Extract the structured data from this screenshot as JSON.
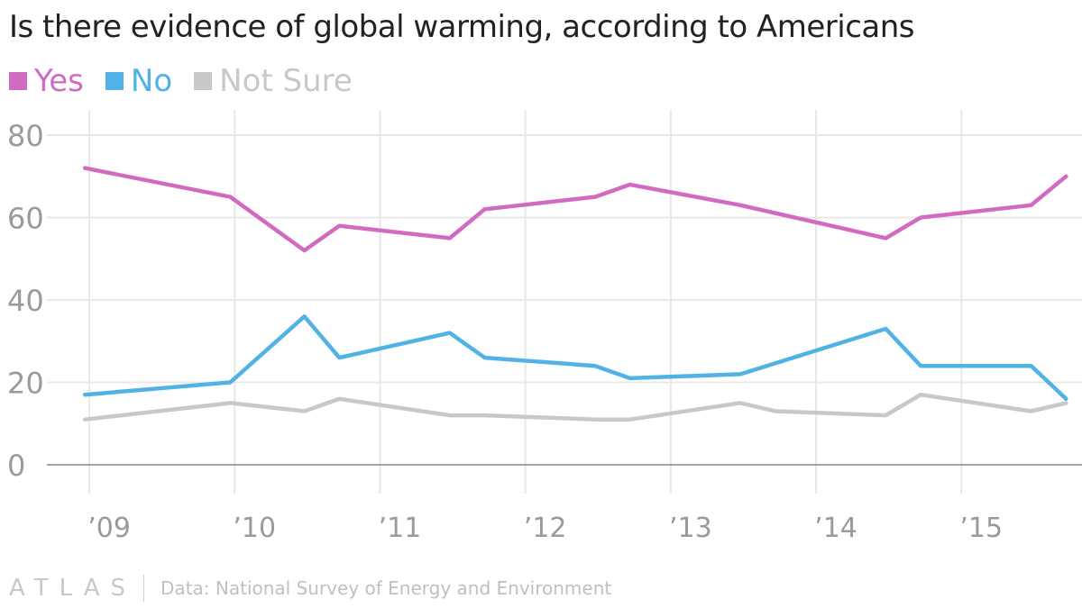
{
  "chart_data": {
    "type": "line",
    "title": "Is there evidence of global warming, according to Americans",
    "xlabel": "",
    "ylabel": "",
    "ylim": [
      0,
      80
    ],
    "yticks": [
      0,
      20,
      40,
      60,
      80
    ],
    "xlim": [
      2008.77,
      2015.83
    ],
    "xticks": [
      2009,
      2010,
      2011,
      2012,
      2013,
      2014,
      2015
    ],
    "xtick_labels": [
      "’09",
      "’10",
      "’11",
      "’12",
      "’13",
      "’14",
      "’15"
    ],
    "legend_position": "top-left",
    "series": [
      {
        "name": "Yes",
        "color": "#d16bc2",
        "points": [
          [
            2008.97,
            72
          ],
          [
            2009.97,
            65
          ],
          [
            2010.48,
            52
          ],
          [
            2010.72,
            58
          ],
          [
            2011.48,
            55
          ],
          [
            2011.72,
            62
          ],
          [
            2012.48,
            65
          ],
          [
            2012.72,
            68
          ],
          [
            2013.48,
            63
          ],
          [
            2014.48,
            55
          ],
          [
            2014.72,
            60
          ],
          [
            2015.48,
            63
          ],
          [
            2015.72,
            70
          ]
        ]
      },
      {
        "name": "No",
        "color": "#51b2e5",
        "points": [
          [
            2008.97,
            17
          ],
          [
            2009.97,
            20
          ],
          [
            2010.48,
            36
          ],
          [
            2010.72,
            26
          ],
          [
            2011.48,
            32
          ],
          [
            2011.72,
            26
          ],
          [
            2012.48,
            24
          ],
          [
            2012.72,
            21
          ],
          [
            2013.48,
            22
          ],
          [
            2014.48,
            33
          ],
          [
            2014.72,
            24
          ],
          [
            2015.48,
            24
          ],
          [
            2015.72,
            16
          ]
        ]
      },
      {
        "name": "Not Sure",
        "color": "#c8c8c8",
        "points": [
          [
            2008.97,
            11
          ],
          [
            2009.97,
            15
          ],
          [
            2010.48,
            13
          ],
          [
            2010.72,
            16
          ],
          [
            2011.48,
            12
          ],
          [
            2011.72,
            12
          ],
          [
            2012.48,
            11
          ],
          [
            2012.72,
            11
          ],
          [
            2013.48,
            15
          ],
          [
            2013.72,
            13
          ],
          [
            2014.48,
            12
          ],
          [
            2014.72,
            17
          ],
          [
            2015.48,
            13
          ],
          [
            2015.72,
            15
          ]
        ]
      }
    ]
  },
  "footer": {
    "logo": "ATLAS",
    "source": "Data: National Survey of Energy and Environment"
  },
  "colors": {
    "grid": "#e8e8e8",
    "axis": "#888888",
    "tick_label": "#9a9a9a"
  }
}
